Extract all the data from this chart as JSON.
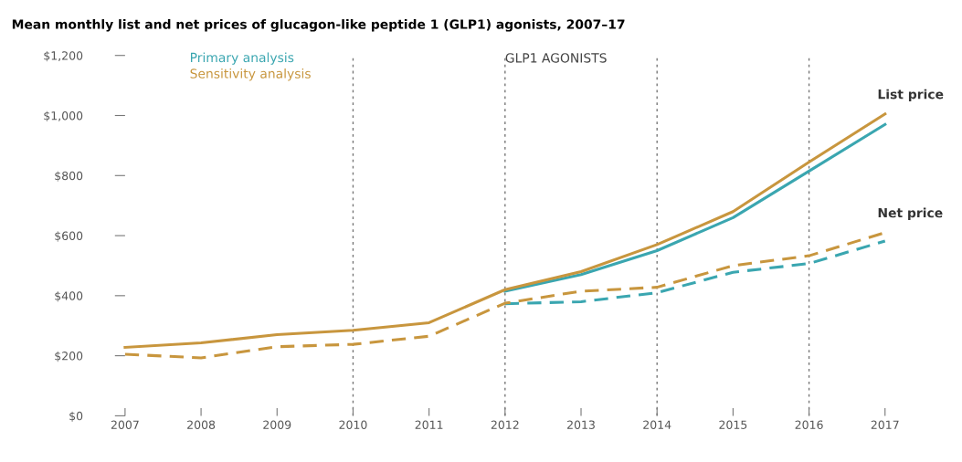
{
  "chart_data": {
    "type": "line",
    "title": "Mean monthly list and net prices of glucagon-like peptide 1 (GLP1) agonists, 2007–17",
    "x": [
      2007,
      2008,
      2009,
      2010,
      2011,
      2012,
      2013,
      2014,
      2015,
      2016,
      2017
    ],
    "series": [
      {
        "name": "Primary analysis",
        "color": "#3aa6b0",
        "line_style": "solid",
        "values": [
          null,
          null,
          null,
          null,
          null,
          415,
          470,
          550,
          660,
          815,
          970
        ]
      },
      {
        "name": "Sensitivity analysis",
        "color": "#c8963e",
        "line_style": "solid",
        "values": [
          228,
          243,
          270,
          285,
          310,
          420,
          480,
          570,
          680,
          845,
          1005
        ]
      },
      {
        "color": "#3aa6b0",
        "line_style": "dashed",
        "values": [
          null,
          null,
          null,
          null,
          null,
          373,
          380,
          410,
          478,
          507,
          582
        ]
      },
      {
        "color": "#c8963e",
        "line_style": "dashed",
        "values": [
          205,
          193,
          230,
          238,
          265,
          375,
          415,
          428,
          500,
          533,
          610
        ]
      }
    ],
    "xlim": [
      2007,
      2017
    ],
    "xticks": [
      2007,
      2008,
      2009,
      2010,
      2011,
      2012,
      2013,
      2014,
      2015,
      2016,
      2017
    ],
    "ylim": [
      0,
      1200
    ],
    "yticks": [
      {
        "value": 0,
        "label": "$0"
      },
      {
        "value": 200,
        "label": "$200"
      },
      {
        "value": 400,
        "label": "$400"
      },
      {
        "value": 600,
        "label": "$600"
      },
      {
        "value": 800,
        "label": "$800"
      },
      {
        "value": 1000,
        "label": "$1,000"
      },
      {
        "value": 1200,
        "label": "$1,200"
      }
    ],
    "ref_lines": [
      {
        "axis": "x",
        "value": 2010,
        "color": "#777777",
        "line_style": "dotted"
      },
      {
        "axis": "x",
        "value": 2012,
        "color": "#777777",
        "line_style": "dotted"
      },
      {
        "axis": "x",
        "value": 2014,
        "color": "#777777",
        "line_style": "dotted"
      },
      {
        "axis": "x",
        "value": 2016,
        "color": "#777777",
        "line_style": "dotted"
      }
    ],
    "annotations": [
      "GLP1 AGONISTS",
      {
        "text": "List price",
        "x": 2017,
        "y": 1005
      },
      {
        "text": "Net price",
        "x": 2017,
        "y": 610
      }
    ],
    "grid": false,
    "legend": "top left",
    "marker": "none"
  }
}
